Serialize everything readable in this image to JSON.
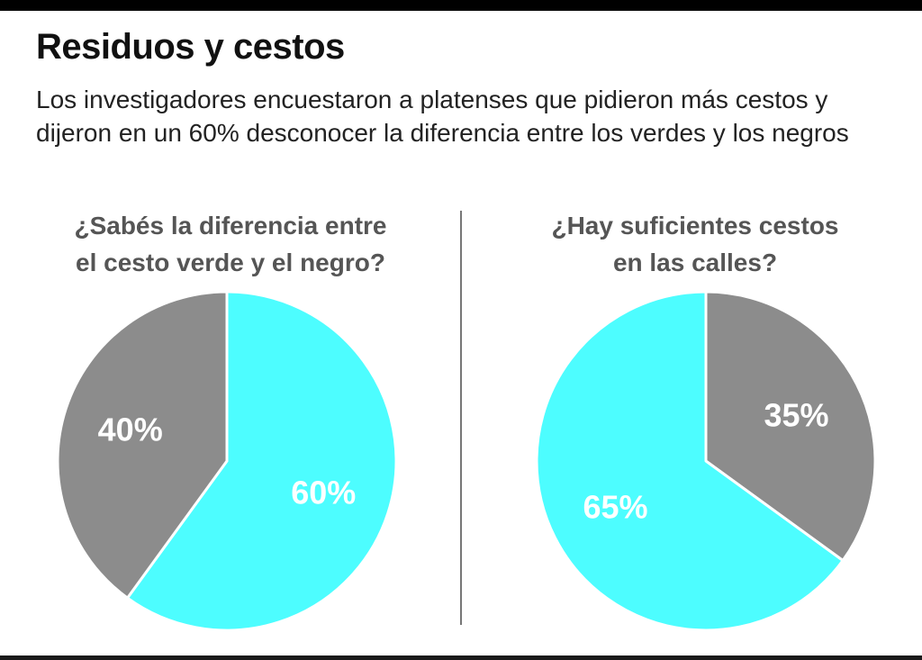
{
  "header": {
    "title": "Residuos y cestos",
    "subtitle": "Los investigadores encuestaron a platenses que pidieron más cestos y dijeron en un 60% desconocer la diferencia entre los verdes y  los negros"
  },
  "colors": {
    "cyan": "#4dfdff",
    "gray": "#8c8c8c",
    "label": "#ffffff"
  },
  "chart_data": [
    {
      "type": "pie",
      "title": "¿Sabés la diferencia entre el cesto verde y el negro?",
      "title_lines": [
        "¿Sabés la diferencia entre",
        "el cesto verde y el negro?"
      ],
      "slices": [
        {
          "value": 60,
          "label": "60%",
          "color": "#4dfdff"
        },
        {
          "value": 40,
          "label": "40%",
          "color": "#8c8c8c"
        }
      ]
    },
    {
      "type": "pie",
      "title": "¿Hay suficientes cestos en las calles?",
      "title_lines": [
        "¿Hay suficientes cestos",
        "en las calles?"
      ],
      "slices": [
        {
          "value": 35,
          "label": "35%",
          "color": "#8c8c8c"
        },
        {
          "value": 65,
          "label": "65%",
          "color": "#4dfdff"
        }
      ]
    }
  ]
}
